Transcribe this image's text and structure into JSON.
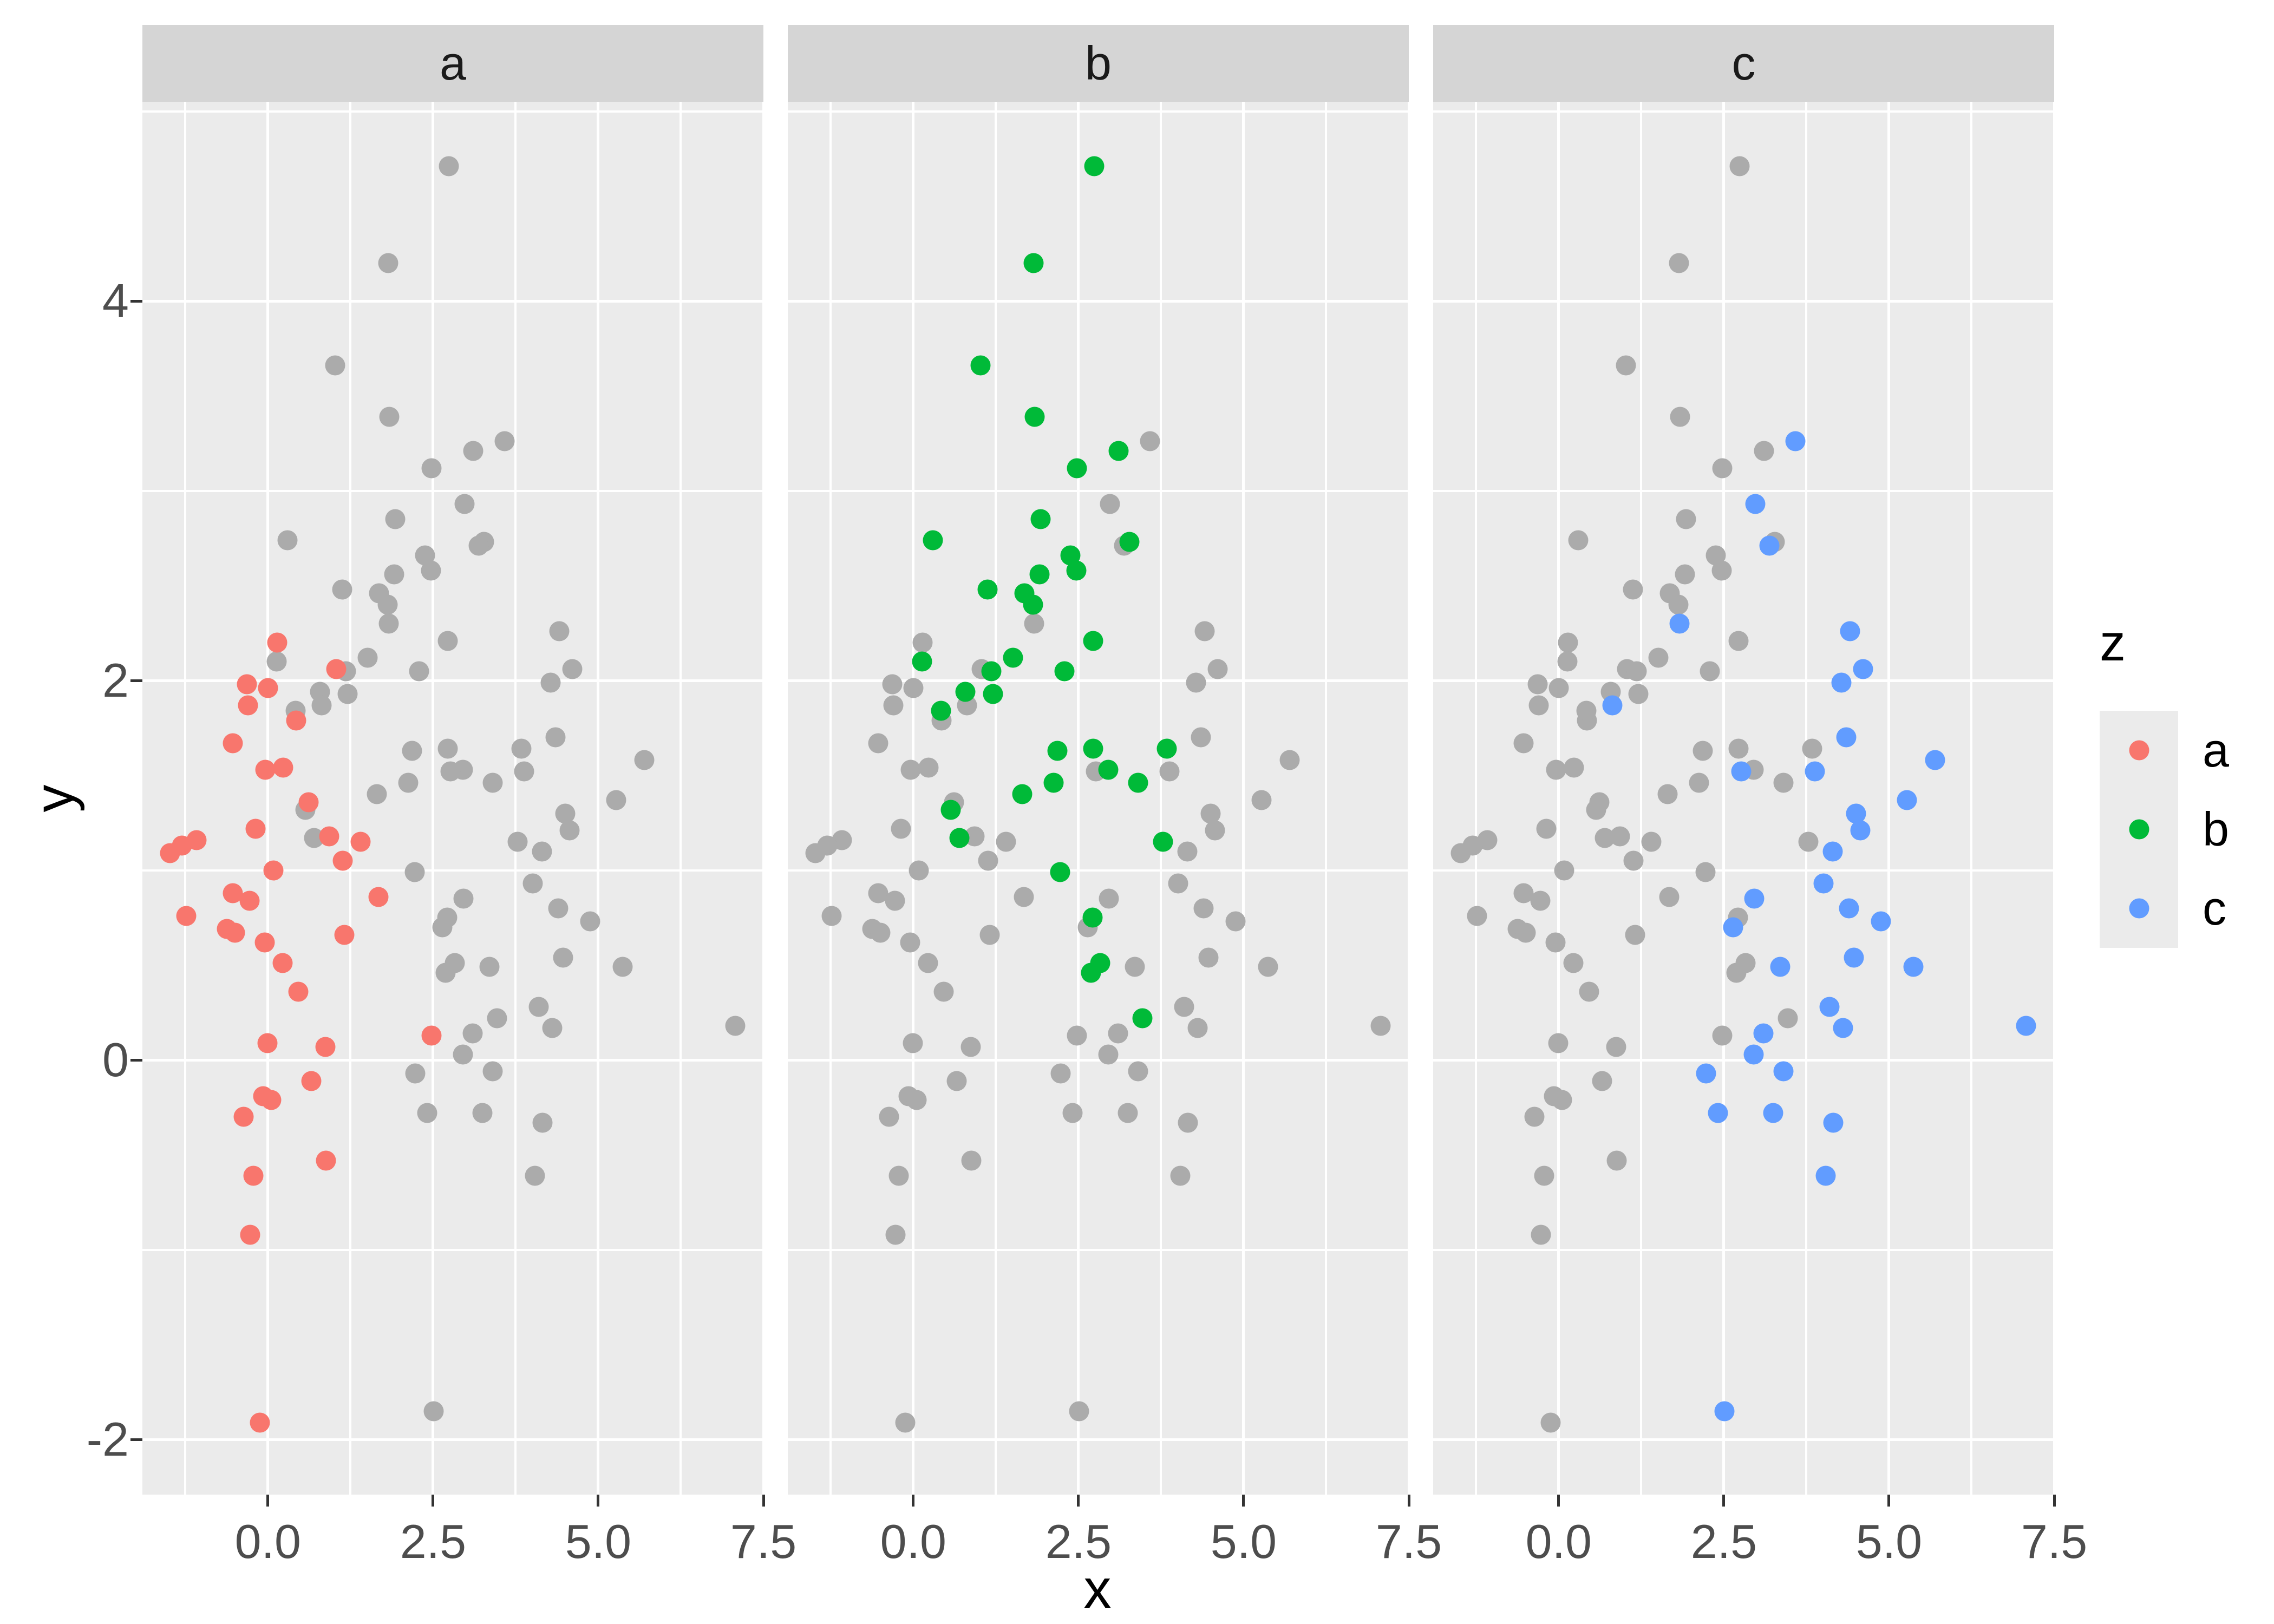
{
  "colors": {
    "panel_bg": "#EBEBEB",
    "strip_bg": "#D5D5D5",
    "strip_text": "#1A1A1A",
    "grid": "#FFFFFF",
    "tick_mark": "#333333",
    "tick_label": "#4D4D4D",
    "axis_title": "#000000",
    "gray_point": "#ABABAB",
    "red": "#F8766D",
    "green": "#00BA38",
    "blue": "#619CFF"
  },
  "chart_data": {
    "type": "scatter",
    "title": "",
    "xlabel": "x",
    "ylabel": "y",
    "facet_labels": [
      "a",
      "b",
      "c"
    ],
    "facet_note": "each facet shows the full dataset in gray with its own group z colored",
    "legend": {
      "title": "z",
      "entries": [
        {
          "label": "a",
          "color": "#F8766D"
        },
        {
          "label": "b",
          "color": "#00BA38"
        },
        {
          "label": "c",
          "color": "#619CFF"
        }
      ]
    },
    "x_ticks": {
      "values": [
        0,
        2.5,
        5,
        7.5
      ],
      "labels": [
        "0.0",
        "2.5",
        "5.0",
        "7.5"
      ]
    },
    "y_ticks": {
      "values": [
        4,
        2,
        0,
        -2
      ],
      "labels": [
        "4",
        "2",
        "0",
        "-2"
      ]
    },
    "x_minor": [
      -1.25,
      1.25,
      3.75,
      6.25
    ],
    "y_minor": [
      5,
      3,
      1,
      -1
    ],
    "xlim": [
      -1.9,
      7.5
    ],
    "ylim": [
      -2.29,
      5.05
    ],
    "grid": true,
    "legend_position": "right",
    "series": [
      {
        "name": "a",
        "color": "#F8766D",
        "points": [
          [
            0.14,
            2.2
          ],
          [
            1.03,
            2.06
          ],
          [
            -0.32,
            1.98
          ],
          [
            0.0,
            1.96
          ],
          [
            -0.3,
            1.87
          ],
          [
            0.43,
            1.79
          ],
          [
            -0.53,
            1.67
          ],
          [
            -0.04,
            1.53
          ],
          [
            0.23,
            1.54
          ],
          [
            0.62,
            1.36
          ],
          [
            -0.19,
            1.22
          ],
          [
            -1.08,
            1.16
          ],
          [
            -1.3,
            1.13
          ],
          [
            -1.48,
            1.09
          ],
          [
            0.93,
            1.18
          ],
          [
            1.4,
            1.15
          ],
          [
            1.13,
            1.05
          ],
          [
            0.08,
            1.0
          ],
          [
            -0.53,
            0.88
          ],
          [
            -0.28,
            0.84
          ],
          [
            -1.24,
            0.76
          ],
          [
            1.67,
            0.86
          ],
          [
            -0.62,
            0.69
          ],
          [
            -0.5,
            0.67
          ],
          [
            -0.05,
            0.62
          ],
          [
            1.16,
            0.66
          ],
          [
            0.22,
            0.51
          ],
          [
            0.46,
            0.36
          ],
          [
            -0.01,
            0.09
          ],
          [
            0.87,
            0.07
          ],
          [
            2.48,
            0.13
          ],
          [
            0.66,
            -0.11
          ],
          [
            -0.07,
            -0.19
          ],
          [
            0.05,
            -0.21
          ],
          [
            -0.37,
            -0.3
          ],
          [
            -0.22,
            -0.61
          ],
          [
            0.88,
            -0.53
          ],
          [
            -0.27,
            -0.92
          ],
          [
            -0.12,
            -1.91
          ]
        ]
      },
      {
        "name": "b",
        "color": "#00BA38",
        "points": [
          [
            2.74,
            4.71
          ],
          [
            1.82,
            4.2
          ],
          [
            1.02,
            3.66
          ],
          [
            1.84,
            3.39
          ],
          [
            3.11,
            3.21
          ],
          [
            2.48,
            3.12
          ],
          [
            1.93,
            2.85
          ],
          [
            0.3,
            2.74
          ],
          [
            3.27,
            2.73
          ],
          [
            2.38,
            2.66
          ],
          [
            2.47,
            2.58
          ],
          [
            1.91,
            2.56
          ],
          [
            1.68,
            2.46
          ],
          [
            1.12,
            2.48
          ],
          [
            1.81,
            2.4
          ],
          [
            2.72,
            2.21
          ],
          [
            1.51,
            2.12
          ],
          [
            0.13,
            2.1
          ],
          [
            1.18,
            2.05
          ],
          [
            2.29,
            2.05
          ],
          [
            0.79,
            1.94
          ],
          [
            1.21,
            1.93
          ],
          [
            0.42,
            1.84
          ],
          [
            2.72,
            1.64
          ],
          [
            3.84,
            1.64
          ],
          [
            2.18,
            1.63
          ],
          [
            2.95,
            1.53
          ],
          [
            3.4,
            1.46
          ],
          [
            2.12,
            1.46
          ],
          [
            1.65,
            1.4
          ],
          [
            0.57,
            1.32
          ],
          [
            0.7,
            1.17
          ],
          [
            3.78,
            1.15
          ],
          [
            2.22,
            0.99
          ],
          [
            2.71,
            0.75
          ],
          [
            2.83,
            0.51
          ],
          [
            2.69,
            0.46
          ],
          [
            3.47,
            0.22
          ]
        ]
      },
      {
        "name": "c",
        "color": "#619CFF",
        "points": [
          [
            3.58,
            3.26
          ],
          [
            2.98,
            2.93
          ],
          [
            3.19,
            2.71
          ],
          [
            1.83,
            2.3
          ],
          [
            4.41,
            2.26
          ],
          [
            4.61,
            2.06
          ],
          [
            4.28,
            1.99
          ],
          [
            0.81,
            1.87
          ],
          [
            4.35,
            1.7
          ],
          [
            5.7,
            1.58
          ],
          [
            3.88,
            1.52
          ],
          [
            2.76,
            1.52
          ],
          [
            5.27,
            1.37
          ],
          [
            4.5,
            1.3
          ],
          [
            4.57,
            1.21
          ],
          [
            4.15,
            1.1
          ],
          [
            4.01,
            0.93
          ],
          [
            2.96,
            0.85
          ],
          [
            4.39,
            0.8
          ],
          [
            4.88,
            0.73
          ],
          [
            2.64,
            0.7
          ],
          [
            4.47,
            0.54
          ],
          [
            3.35,
            0.49
          ],
          [
            5.37,
            0.49
          ],
          [
            4.1,
            0.28
          ],
          [
            4.3,
            0.17
          ],
          [
            7.07,
            0.18
          ],
          [
            3.1,
            0.14
          ],
          [
            2.95,
            0.03
          ],
          [
            2.23,
            -0.07
          ],
          [
            3.4,
            -0.06
          ],
          [
            2.41,
            -0.28
          ],
          [
            3.25,
            -0.28
          ],
          [
            4.16,
            -0.33
          ],
          [
            4.04,
            -0.61
          ],
          [
            2.51,
            -1.85
          ]
        ]
      }
    ]
  }
}
